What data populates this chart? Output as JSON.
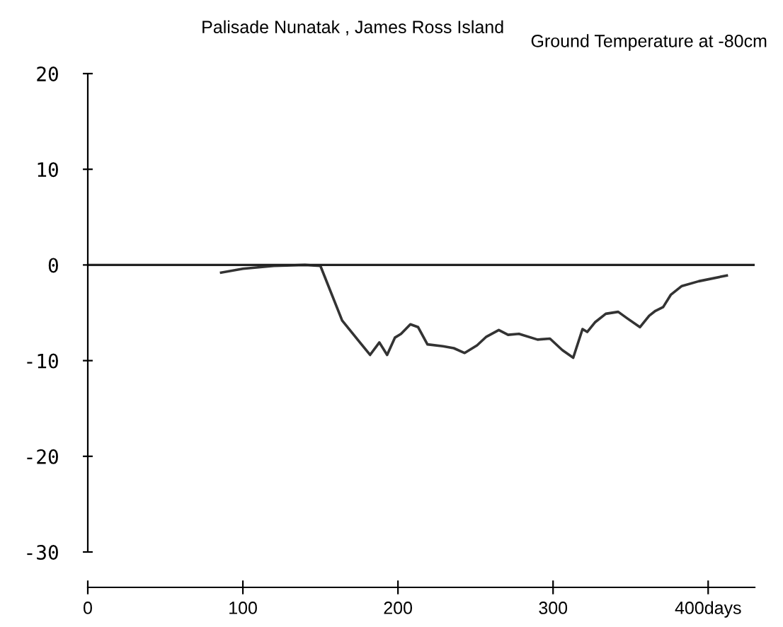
{
  "chart_data": {
    "type": "line",
    "title": "Palisade Nunatak , James Ross Island",
    "subtitle": "Ground Temperature at -80cm",
    "x": [
      86,
      100,
      120,
      140,
      150,
      164,
      175,
      182,
      188,
      193,
      198,
      202,
      208,
      213,
      219,
      229,
      236,
      243,
      251,
      257,
      265,
      271,
      278,
      290,
      298,
      306,
      313,
      319,
      322,
      327,
      334,
      342,
      348,
      356,
      362,
      366,
      371,
      376,
      383,
      394,
      412
    ],
    "series": [
      {
        "color": "#333333",
        "values": [
          -0.8,
          -0.4,
          -0.1,
          0,
          -0.1,
          -5.8,
          -8.0,
          -9.4,
          -8.1,
          -9.4,
          -7.6,
          -7.2,
          -6.2,
          -6.5,
          -8.3,
          -8.5,
          -8.7,
          -9.2,
          -8.4,
          -7.5,
          -6.8,
          -7.3,
          -7.2,
          -7.8,
          -7.7,
          -8.9,
          -9.7,
          -6.7,
          -7.0,
          -6.0,
          -5.1,
          -4.9,
          -5.6,
          -6.5,
          -5.3,
          -4.8,
          -4.4,
          -3.1,
          -2.2,
          -1.7,
          -1.1
        ]
      }
    ],
    "xlim": [
      0,
      430
    ],
    "ylim": [
      -30,
      20
    ],
    "xticks": [
      0,
      100,
      200,
      300,
      {
        "value": 400,
        "label": "400days"
      }
    ],
    "yticks": [
      -30,
      -20,
      -10,
      0,
      10,
      20
    ],
    "ref_lines": [
      {
        "axis": "y",
        "value": 0,
        "color": "#222222"
      }
    ],
    "grid": false,
    "legend": false,
    "marker": "none",
    "line_style": "solid"
  }
}
